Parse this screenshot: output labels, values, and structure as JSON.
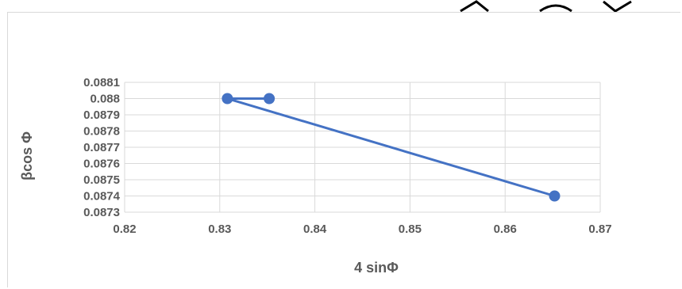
{
  "chart_data": {
    "type": "scatter",
    "title": "",
    "xlabel": "4 sinΦ",
    "ylabel": "βcos Φ",
    "xlim": [
      0.82,
      0.87
    ],
    "ylim": [
      0.0873,
      0.0881
    ],
    "x_ticks": [
      "0.82",
      "0.83",
      "0.84",
      "0.85",
      "0.86",
      "0.87"
    ],
    "y_ticks": [
      "0.0881",
      "0.088",
      "0.0879",
      "0.0878",
      "0.0877",
      "0.0876",
      "0.0875",
      "0.0874",
      "0.0873"
    ],
    "grid": true,
    "legend": false,
    "series": [
      {
        "style": "line-with-markers",
        "color": "#4472c4",
        "points": [
          {
            "x": 0.8352,
            "y": 0.088
          },
          {
            "x": 0.8308,
            "y": 0.088
          },
          {
            "x": 0.8652,
            "y": 0.0874
          }
        ]
      }
    ]
  }
}
